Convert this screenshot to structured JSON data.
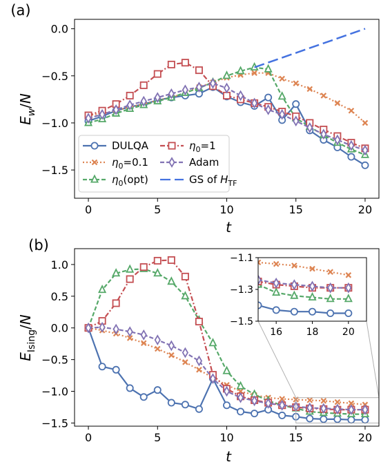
{
  "chart_data": [
    {
      "type": "line",
      "panel_label": "(a)",
      "xlabel": "t",
      "ylabel": "E_w/N",
      "xlim": [
        -1,
        21
      ],
      "ylim": [
        -1.8,
        0.1
      ],
      "xticks": [
        "0",
        "5",
        "10",
        "15",
        "20"
      ],
      "yticks": [
        "0.0",
        "−0.5",
        "−1.0",
        "−1.5"
      ],
      "legend_position": "lower-left",
      "series": [
        {
          "name": "DULQA",
          "color": "#4c72b0",
          "marker": "circle",
          "linestyle": "solid",
          "x": [
            0,
            1,
            2,
            3,
            4,
            5,
            6,
            7,
            8,
            9,
            10,
            11,
            12,
            13,
            14,
            15,
            16,
            17,
            18,
            19,
            20
          ],
          "y": [
            -0.98,
            -0.93,
            -0.87,
            -0.83,
            -0.8,
            -0.76,
            -0.73,
            -0.71,
            -0.69,
            -0.62,
            -0.72,
            -0.78,
            -0.82,
            -0.73,
            -0.97,
            -0.8,
            -1.08,
            -1.18,
            -1.26,
            -1.36,
            -1.45
          ]
        },
        {
          "name": "η₀=0.1",
          "color": "#dd8452",
          "marker": "x",
          "linestyle": "dotted",
          "x": [
            0,
            1,
            2,
            3,
            4,
            5,
            6,
            7,
            8,
            9,
            10,
            11,
            12,
            13,
            14,
            15,
            16,
            17,
            18,
            19,
            20
          ],
          "y": [
            -0.92,
            -0.9,
            -0.87,
            -0.83,
            -0.8,
            -0.76,
            -0.73,
            -0.68,
            -0.62,
            -0.57,
            -0.52,
            -0.49,
            -0.47,
            -0.47,
            -0.53,
            -0.58,
            -0.64,
            -0.71,
            -0.79,
            -0.87,
            -1.0
          ]
        },
        {
          "name": "η₀(opt)",
          "color": "#55a868",
          "marker": "triangle",
          "linestyle": "dashed",
          "x": [
            0,
            1,
            2,
            3,
            4,
            5,
            6,
            7,
            8,
            9,
            10,
            11,
            12,
            13,
            14,
            15,
            16,
            17,
            18,
            19,
            20
          ],
          "y": [
            -1.0,
            -0.96,
            -0.9,
            -0.85,
            -0.81,
            -0.77,
            -0.73,
            -0.68,
            -0.63,
            -0.57,
            -0.5,
            -0.45,
            -0.41,
            -0.43,
            -0.72,
            -0.95,
            -1.04,
            -1.13,
            -1.21,
            -1.28,
            -1.34
          ]
        },
        {
          "name": "η₀=1",
          "color": "#c44e52",
          "marker": "square",
          "linestyle": "dashdot",
          "x": [
            0,
            1,
            2,
            3,
            4,
            5,
            6,
            7,
            8,
            9,
            10,
            11,
            12,
            13,
            14,
            15,
            16,
            17,
            18,
            19,
            20
          ],
          "y": [
            -0.92,
            -0.87,
            -0.8,
            -0.71,
            -0.6,
            -0.48,
            -0.38,
            -0.36,
            -0.44,
            -0.61,
            -0.71,
            -0.75,
            -0.79,
            -0.83,
            -0.88,
            -0.93,
            -1.0,
            -1.07,
            -1.14,
            -1.21,
            -1.27
          ]
        },
        {
          "name": "Adam",
          "color": "#8172b3",
          "marker": "diamond",
          "linestyle": "dashed",
          "x": [
            0,
            1,
            2,
            3,
            4,
            5,
            6,
            7,
            8,
            9,
            10,
            11,
            12,
            13,
            14,
            15,
            16,
            17,
            18,
            19,
            20
          ],
          "y": [
            -0.95,
            -0.91,
            -0.86,
            -0.81,
            -0.77,
            -0.73,
            -0.69,
            -0.65,
            -0.62,
            -0.58,
            -0.63,
            -0.71,
            -0.79,
            -0.86,
            -0.91,
            -0.98,
            -1.05,
            -1.12,
            -1.18,
            -1.24,
            -1.29
          ]
        },
        {
          "name": "GS of H_TF",
          "color": "#4472e0",
          "marker": "none",
          "linestyle": "longdash",
          "x": [
            12,
            20
          ],
          "y": [
            -0.41,
            0.0
          ]
        }
      ]
    },
    {
      "type": "line",
      "panel_label": "(b)",
      "xlabel": "t",
      "ylabel": "E_Ising/N",
      "xlim": [
        -1,
        21
      ],
      "ylim": [
        -1.55,
        1.25
      ],
      "xticks": [
        "0",
        "5",
        "10",
        "15",
        "20"
      ],
      "yticks": [
        "1.0",
        "0.5",
        "0.0",
        "−0.5",
        "−1.0",
        "−1.5"
      ],
      "series": [
        {
          "name": "DULQA",
          "color": "#4c72b0",
          "marker": "circle",
          "linestyle": "solid",
          "x": [
            0,
            1,
            2,
            3,
            4,
            5,
            6,
            7,
            8,
            9,
            10,
            11,
            12,
            13,
            14,
            15,
            16,
            17,
            18,
            19,
            20
          ],
          "y": [
            0.0,
            -0.61,
            -0.66,
            -0.95,
            -1.09,
            -0.98,
            -1.18,
            -1.21,
            -1.28,
            -0.8,
            -1.22,
            -1.32,
            -1.35,
            -1.29,
            -1.38,
            -1.4,
            -1.43,
            -1.44,
            -1.44,
            -1.45,
            -1.45
          ]
        },
        {
          "name": "η₀=0.1",
          "color": "#dd8452",
          "marker": "x",
          "linestyle": "dotted",
          "x": [
            0,
            1,
            2,
            3,
            4,
            5,
            6,
            7,
            8,
            9,
            10,
            11,
            12,
            13,
            14,
            15,
            16,
            17,
            18,
            19,
            20
          ],
          "y": [
            0.0,
            -0.04,
            -0.09,
            -0.16,
            -0.24,
            -0.33,
            -0.43,
            -0.54,
            -0.66,
            -0.79,
            -0.9,
            -1.0,
            -1.06,
            -1.1,
            -1.12,
            -1.13,
            -1.14,
            -1.15,
            -1.17,
            -1.19,
            -1.21
          ]
        },
        {
          "name": "η₀(opt)",
          "color": "#55a868",
          "marker": "triangle",
          "linestyle": "dashed",
          "x": [
            0,
            1,
            2,
            3,
            4,
            5,
            6,
            7,
            8,
            9,
            10,
            11,
            12,
            13,
            14,
            15,
            16,
            17,
            18,
            19,
            20
          ],
          "y": [
            0.0,
            0.6,
            0.86,
            0.92,
            0.93,
            0.86,
            0.73,
            0.5,
            0.12,
            -0.24,
            -0.68,
            -0.92,
            -1.05,
            -1.15,
            -1.22,
            -1.27,
            -1.32,
            -1.34,
            -1.35,
            -1.36,
            -1.36
          ]
        },
        {
          "name": "η₀=1",
          "color": "#c44e52",
          "marker": "square",
          "linestyle": "dashdot",
          "x": [
            0,
            1,
            2,
            3,
            4,
            5,
            6,
            7,
            8,
            9,
            10,
            11,
            12,
            13,
            14,
            15,
            16,
            17,
            18,
            19,
            20
          ],
          "y": [
            0.0,
            0.11,
            0.39,
            0.77,
            0.96,
            1.06,
            1.07,
            0.81,
            0.1,
            -0.74,
            -0.96,
            -1.08,
            -1.14,
            -1.18,
            -1.22,
            -1.25,
            -1.27,
            -1.28,
            -1.29,
            -1.29,
            -1.29
          ]
        },
        {
          "name": "Adam",
          "color": "#8172b3",
          "marker": "diamond",
          "linestyle": "dashed",
          "x": [
            0,
            1,
            2,
            3,
            4,
            5,
            6,
            7,
            8,
            9,
            10,
            11,
            12,
            13,
            14,
            15,
            16,
            17,
            18,
            19,
            20
          ],
          "y": [
            0.0,
            0.01,
            -0.02,
            -0.06,
            -0.11,
            -0.19,
            -0.28,
            -0.39,
            -0.52,
            -0.8,
            -1.0,
            -1.1,
            -1.15,
            -1.19,
            -1.22,
            -1.24,
            -1.26,
            -1.27,
            -1.28,
            -1.29,
            -1.29
          ]
        }
      ],
      "inset": {
        "xlim": [
          15,
          21
        ],
        "ylim": [
          -1.5,
          -1.1
        ],
        "xticks": [
          "16",
          "18",
          "20"
        ],
        "yticks": [
          "−1.1",
          "−1.3",
          "−1.5"
        ],
        "zoom_region": {
          "x": [
            15,
            21
          ],
          "y": [
            -1.5,
            -1.1
          ]
        }
      }
    }
  ]
}
